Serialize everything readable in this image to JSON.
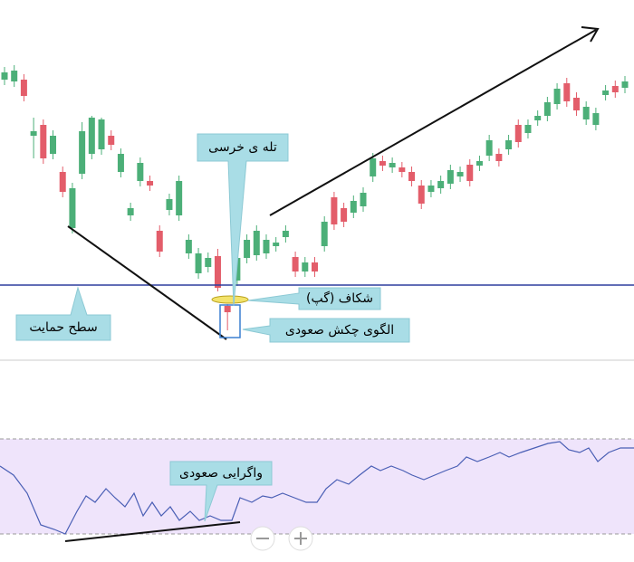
{
  "chart_data": [
    {
      "type": "candlestick",
      "ylim": [
        0,
        400
      ],
      "up_color": "#4caf78",
      "down_color": "#e35d6a",
      "support_line": 85,
      "support_color": "#2e3f9e",
      "annotations": [
        "تله ی خرسی",
        "شکاف (گپ)",
        "الگوی چکش صعودی",
        "سطح حمایت"
      ],
      "open": [
        312,
        310,
        312,
        250,
        262,
        230,
        210,
        148,
        208,
        230,
        235,
        250,
        210,
        162,
        200,
        200,
        145,
        168,
        162,
        120,
        98,
        105,
        117,
        62,
        90,
        115,
        118,
        120,
        128,
        138,
        116,
        100,
        110,
        128,
        182,
        170,
        165,
        172,
        205,
        222,
        215,
        215,
        210,
        195,
        188,
        192,
        197,
        205,
        218,
        217,
        228,
        230,
        235,
        262,
        253,
        267,
        272,
        285,
        308,
        292,
        268,
        262,
        295,
        305,
        303
      ],
      "high": [
        326,
        328,
        318,
        270,
        268,
        256,
        216,
        198,
        265,
        272,
        270,
        256,
        236,
        176,
        226,
        206,
        151,
        186,
        206,
        141,
        126,
        121,
        125,
        64,
        121,
        141,
        151,
        141,
        138,
        151,
        122,
        116,
        116,
        161,
        188,
        176,
        184,
        193,
        231,
        228,
        226,
        221,
        216,
        201,
        201,
        206,
        218,
        216,
        224,
        228,
        251,
        236,
        251,
        268,
        268,
        278,
        293,
        308,
        314,
        298,
        288,
        281,
        306,
        311,
        316
      ],
      "low": [
        306,
        304,
        288,
        225,
        219,
        224,
        182,
        142,
        202,
        224,
        229,
        234,
        204,
        156,
        194,
        189,
        116,
        162,
        156,
        114,
        92,
        99,
        78,
        35,
        84,
        109,
        112,
        114,
        122,
        132,
        94,
        94,
        94,
        122,
        146,
        149,
        159,
        166,
        199,
        211,
        209,
        204,
        194,
        169,
        182,
        186,
        191,
        199,
        194,
        211,
        222,
        216,
        229,
        237,
        247,
        261,
        266,
        279,
        282,
        272,
        262,
        256,
        289,
        292,
        297
      ],
      "close": [
        320,
        322,
        294,
        255,
        225,
        250,
        188,
        192,
        255,
        270,
        268,
        240,
        230,
        170,
        220,
        195,
        122,
        180,
        200,
        135,
        120,
        115,
        82,
        55,
        115,
        135,
        145,
        135,
        132,
        145,
        100,
        110,
        100,
        155,
        152,
        155,
        178,
        187,
        225,
        217,
        220,
        210,
        200,
        175,
        195,
        200,
        212,
        210,
        200,
        222,
        245,
        222,
        245,
        243,
        262,
        272,
        287,
        302,
        288,
        278,
        282,
        275,
        300,
        298,
        310
      ]
    },
    {
      "type": "line",
      "color": "#4a5fb5",
      "band_color": "#efe4fb",
      "ylim": [
        0,
        140
      ],
      "levels": [
        30,
        135
      ],
      "annotations": [
        "واگرایی صعودی"
      ],
      "x": [
        0,
        15,
        30,
        45,
        60,
        72,
        85,
        95,
        105,
        117,
        127,
        138,
        148,
        158,
        168,
        178,
        188,
        198,
        210,
        220,
        232,
        244,
        256,
        265,
        278,
        290,
        300,
        312,
        325,
        338,
        350,
        360,
        372,
        385,
        397,
        410,
        420,
        432,
        445,
        455,
        468,
        480,
        492,
        505,
        515,
        527,
        540,
        552,
        562,
        575,
        590,
        605,
        618,
        628,
        640,
        650,
        660,
        672,
        685,
        700
      ],
      "values": [
        105,
        95,
        75,
        40,
        35,
        30,
        55,
        72,
        65,
        80,
        70,
        60,
        75,
        50,
        65,
        50,
        60,
        45,
        55,
        45,
        50,
        45,
        45,
        70,
        65,
        72,
        70,
        75,
        70,
        65,
        65,
        80,
        90,
        85,
        95,
        105,
        100,
        105,
        100,
        95,
        90,
        95,
        100,
        105,
        115,
        110,
        115,
        120,
        115,
        120,
        125,
        130,
        132,
        123,
        120,
        125,
        110,
        120,
        125,
        125
      ]
    }
  ]
}
